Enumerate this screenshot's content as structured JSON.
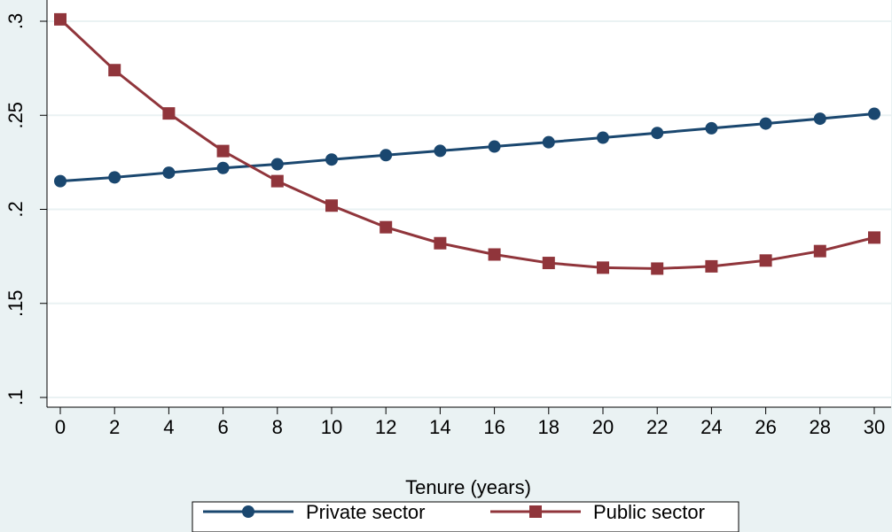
{
  "chart_data": {
    "type": "line",
    "title": "",
    "xlabel": "Tenure (years)",
    "ylabel": "",
    "x": [
      0,
      2,
      4,
      6,
      8,
      10,
      12,
      14,
      16,
      18,
      20,
      22,
      24,
      26,
      28,
      30
    ],
    "xlim": [
      0,
      30
    ],
    "ylim": [
      0.1,
      0.3
    ],
    "xticks": [
      "0",
      "2",
      "4",
      "6",
      "8",
      "10",
      "12",
      "14",
      "16",
      "18",
      "20",
      "22",
      "24",
      "26",
      "28",
      "30"
    ],
    "yticks": [
      {
        "value": 0.1,
        "label": ".1"
      },
      {
        "value": 0.15,
        "label": ".15"
      },
      {
        "value": 0.2,
        "label": ".2"
      },
      {
        "value": 0.25,
        "label": ".25"
      },
      {
        "value": 0.3,
        "label": ".3"
      }
    ],
    "grid": "horizontal",
    "legend_position": "bottom",
    "series": [
      {
        "name": "Private sector",
        "color": "#1a476f",
        "marker": "circle",
        "values": [
          0.215,
          0.217,
          0.2195,
          0.222,
          0.224,
          0.2265,
          0.2288,
          0.2311,
          0.2334,
          0.2357,
          0.2381,
          0.2406,
          0.2431,
          0.2456,
          0.2482,
          0.2508
        ]
      },
      {
        "name": "Public sector",
        "color": "#90353b",
        "marker": "square",
        "values": [
          0.301,
          0.274,
          0.251,
          0.231,
          0.215,
          0.202,
          0.1905,
          0.182,
          0.176,
          0.1715,
          0.169,
          0.1685,
          0.1697,
          0.1728,
          0.1778,
          0.185
        ]
      }
    ]
  }
}
